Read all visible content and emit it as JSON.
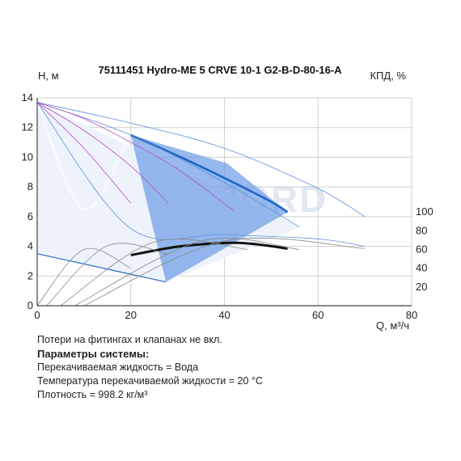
{
  "chart_data": {
    "type": "line",
    "title": "75111451 Hydro-ME 5 CRVE 10-1 G2-B-D-80-16-A",
    "ylabel": "H, м",
    "y2label": "КПД, %",
    "xlabel": "Q, м³/ч",
    "xlim": [
      0,
      80
    ],
    "ylim": [
      0,
      14
    ],
    "y2lim": [
      0,
      120
    ],
    "xticks": [
      0,
      20,
      40,
      60,
      80
    ],
    "yticks": [
      2,
      4,
      6,
      8,
      10,
      12,
      14
    ],
    "y2ticks": [
      20,
      40,
      60,
      80,
      100
    ],
    "grid": true,
    "watermark": "VANDJORD",
    "series": [
      {
        "role": "operating-area",
        "color": "#6b9be6",
        "x": [
          20,
          27.5,
          53.5,
          40.5,
          20
        ],
        "y": [
          11.5,
          1.6,
          6.3,
          9.6,
          11.5
        ]
      },
      {
        "role": "left-envelope",
        "color": "#ffffff",
        "x": [
          0,
          10,
          20
        ],
        "y": [
          13.7,
          6.5,
          11.6
        ]
      },
      {
        "role": "head-curve-max",
        "color": "#1f63c7",
        "x": [
          20,
          30,
          40,
          50,
          53.5
        ],
        "y": [
          11.5,
          10.1,
          8.6,
          7,
          6.3
        ]
      },
      {
        "role": "head-envelope-1",
        "color": "#5a8fd6",
        "x": [
          0,
          20,
          40,
          56
        ],
        "y": [
          13.7,
          11.5,
          8.3,
          5.3
        ]
      },
      {
        "role": "head-envelope-2",
        "color": "#5a8fd6",
        "x": [
          0,
          20,
          40,
          60,
          70
        ],
        "y": [
          13.7,
          12.3,
          10.6,
          7.9,
          6
        ]
      },
      {
        "role": "head-envelope-3",
        "color": "#5a8fd6",
        "x": [
          0,
          20,
          40,
          60,
          70
        ],
        "y": [
          13.7,
          5.2,
          4.8,
          4.5,
          4
        ]
      },
      {
        "role": "min-head-line",
        "color": "#3f78c8",
        "x": [
          0,
          27.5
        ],
        "y": [
          3.5,
          1.6
        ]
      },
      {
        "role": "efficiency-curve",
        "color": "#111111",
        "axis": "y2",
        "x": [
          20,
          30,
          40,
          46,
          53.5
        ],
        "y": [
          54,
          63,
          67,
          66,
          61
        ]
      },
      {
        "role": "efficiency-envelope-1",
        "color": "#888888",
        "axis": "y2",
        "x": [
          0,
          10,
          20
        ],
        "y": [
          0,
          60,
          40
        ]
      },
      {
        "role": "efficiency-envelope-2",
        "color": "#888888",
        "axis": "y2",
        "x": [
          2,
          15,
          28
        ],
        "y": [
          0,
          64,
          55
        ]
      },
      {
        "role": "efficiency-envelope-3",
        "color": "#888888",
        "axis": "y2",
        "x": [
          5,
          25,
          45
        ],
        "y": [
          0,
          68,
          60
        ]
      },
      {
        "role": "efficiency-envelope-4",
        "color": "#888888",
        "axis": "y2",
        "x": [
          8,
          35,
          56
        ],
        "y": [
          0,
          69,
          60
        ]
      },
      {
        "role": "efficiency-envelope-5",
        "color": "#888888",
        "axis": "y2",
        "x": [
          10,
          40,
          70
        ],
        "y": [
          0,
          69,
          61
        ]
      },
      {
        "role": "magenta-1",
        "color": "#b44ec8",
        "x": [
          0,
          10,
          20
        ],
        "y": [
          13.7,
          10.6,
          6.9
        ]
      },
      {
        "role": "magenta-2",
        "color": "#b44ec8",
        "x": [
          0,
          10,
          20,
          28
        ],
        "y": [
          13.7,
          11.8,
          9.4,
          6.9
        ]
      },
      {
        "role": "magenta-3",
        "color": "#b44ec8",
        "x": [
          0,
          10,
          20,
          30,
          42
        ],
        "y": [
          13.7,
          12.6,
          11,
          9.2,
          6.4
        ]
      }
    ]
  },
  "notes": {
    "line1": "Потери на фитингах и клапанах не вкл.",
    "heading": "Параметры системы:",
    "line2": "Перекачиваемая жидкость = Вода",
    "line3": "Температура перекачиваемой жидкости = 20 °C",
    "line4": "Плотность = 998.2 кг/м³"
  }
}
